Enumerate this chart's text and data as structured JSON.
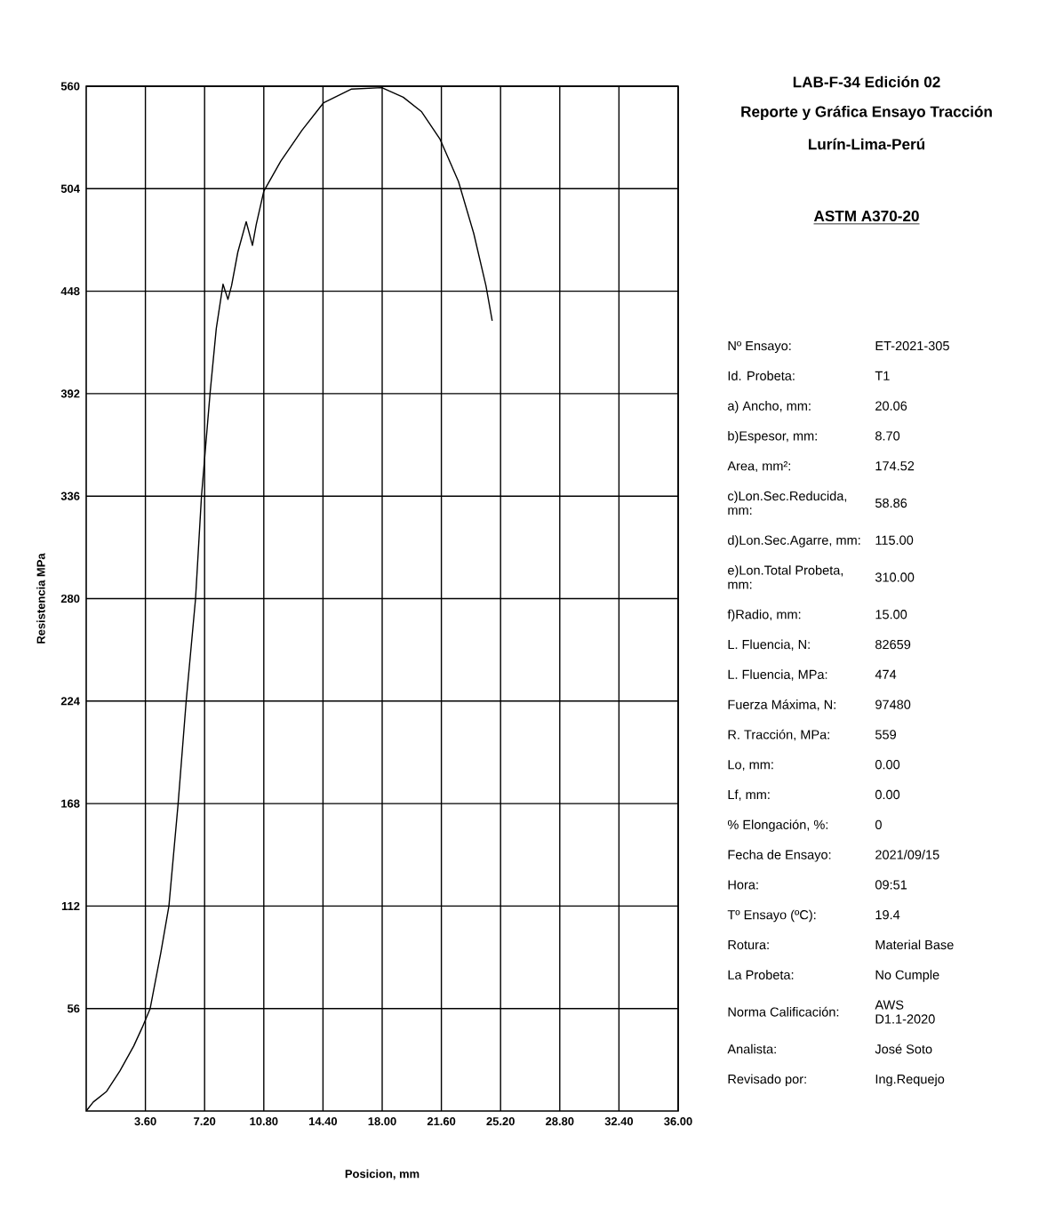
{
  "chart_data": [
    {
      "type": "line",
      "xlabel": "Posicion, mm",
      "ylabel": "Resistencia MPa",
      "x": [
        0,
        0.43,
        1.24,
        2.05,
        2.89,
        3.41,
        3.89,
        4.54,
        5.03,
        5.59,
        6.08,
        6.65,
        7.01,
        7.54,
        7.91,
        8.32,
        8.62,
        8.84,
        9.22,
        9.73,
        10.11,
        10.34,
        10.8,
        11.83,
        13.13,
        14.44,
        16.11,
        17.98,
        19.28,
        20.4,
        21.52,
        22.64,
        23.57,
        24.31,
        24.69
      ],
      "series": [
        {
          "color": "#000000",
          "values": [
            0,
            4.9,
            10.7,
            21.9,
            35.5,
            45.7,
            56,
            86.6,
            112,
            168,
            224,
            280,
            336,
            393,
            427.6,
            451.8,
            443.5,
            451,
            469.3,
            486,
            473,
            484.4,
            502.6,
            519,
            536,
            551,
            558.4,
            559.2,
            554,
            546,
            531,
            507.9,
            479.5,
            451,
            431.8
          ]
        }
      ],
      "xlim": [
        0,
        36
      ],
      "xticks": [
        {
          "value": 3.6,
          "label": "3.60"
        },
        {
          "value": 7.2,
          "label": "7.20"
        },
        {
          "value": 10.8,
          "label": "10.80"
        },
        {
          "value": 14.4,
          "label": "14.40"
        },
        {
          "value": 18,
          "label": "18.00"
        },
        {
          "value": 21.6,
          "label": "21.60"
        },
        {
          "value": 25.2,
          "label": "25.20"
        },
        {
          "value": 28.8,
          "label": "28.80"
        },
        {
          "value": 32.4,
          "label": "32.40"
        },
        {
          "value": 36,
          "label": "36.00"
        }
      ],
      "ylim": [
        0,
        560
      ],
      "yticks": [
        56,
        112,
        168,
        224,
        280,
        336,
        392,
        448,
        504,
        560
      ],
      "grid": true,
      "marker": "none",
      "line_style": "solid"
    },
    {
      "type": "other",
      "title": "LAB-F-34 Edición 02",
      "subtitle": "Reporte y Gráfica Ensayo Tracción",
      "annotations": [
        "Lurín-Lima-Perú",
        "ASTM A370-20",
        "Nº Ensayo:",
        "ET-2021-305",
        "Id. Probeta:",
        "T1",
        "a) Ancho, mm:",
        "20.06",
        "b)Espesor, mm:",
        "8.70",
        "Area, mm²:",
        "174.52",
        "c)Lon.Sec.Reducida, mm:",
        "58.86",
        "d)Lon.Sec.Agarre, mm:",
        "115.00",
        "e)Lon.Total Probeta, mm:",
        "310.00",
        "f)Radio, mm:",
        "15.00",
        "L. Fluencia, N:",
        "82659",
        "L. Fluencia, MPa:",
        "474",
        "Fuerza Máxima, N:",
        "97480",
        "R. Tracción, MPa:",
        "559",
        "Lo, mm:",
        "0.00",
        "Lf, mm:",
        "0.00",
        "% Elongación, %:",
        "0",
        "Fecha de Ensayo:",
        "2021/09/15",
        "Hora:",
        "09:51",
        "Tº Ensayo (ºC):",
        "19.4",
        "Rotura:",
        "Material Base",
        "La Probeta:",
        "No Cumple",
        "Norma Calificación:",
        "AWS D1.1-2020",
        "Analista:",
        "José Soto",
        "Revisado por:",
        "Ing.Requejo"
      ]
    }
  ]
}
